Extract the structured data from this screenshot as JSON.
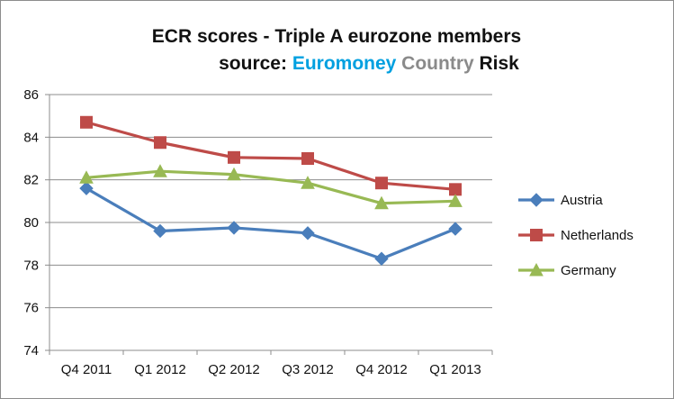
{
  "chart_data": {
    "type": "line",
    "title": "ECR scores - Triple A eurozone members",
    "subtitle_parts": [
      {
        "text": "source: ",
        "color": "#111111"
      },
      {
        "text": "Euromoney",
        "color": "#00a0e0"
      },
      {
        "text": "Country",
        "color": "#8a8a8a"
      },
      {
        "text": "Risk",
        "color": "#111111"
      }
    ],
    "categories": [
      "Q4 2011",
      "Q1 2012",
      "Q2 2012",
      "Q3 2012",
      "Q4 2012",
      "Q1 2013"
    ],
    "ylim": [
      74,
      86
    ],
    "yticks": [
      74,
      76,
      78,
      80,
      82,
      84,
      86
    ],
    "grid": true,
    "legend_position": "right",
    "series": [
      {
        "name": "Austria",
        "color": "#4a7ebb",
        "marker": "diamond",
        "values": [
          81.6,
          79.6,
          79.75,
          79.5,
          78.3,
          79.7
        ]
      },
      {
        "name": "Netherlands",
        "color": "#be4b48",
        "marker": "square",
        "values": [
          84.7,
          83.75,
          83.05,
          83.0,
          81.85,
          81.55
        ]
      },
      {
        "name": "Germany",
        "color": "#98b954",
        "marker": "triangle",
        "values": [
          82.1,
          82.4,
          82.25,
          81.85,
          80.9,
          81.0
        ]
      }
    ]
  }
}
